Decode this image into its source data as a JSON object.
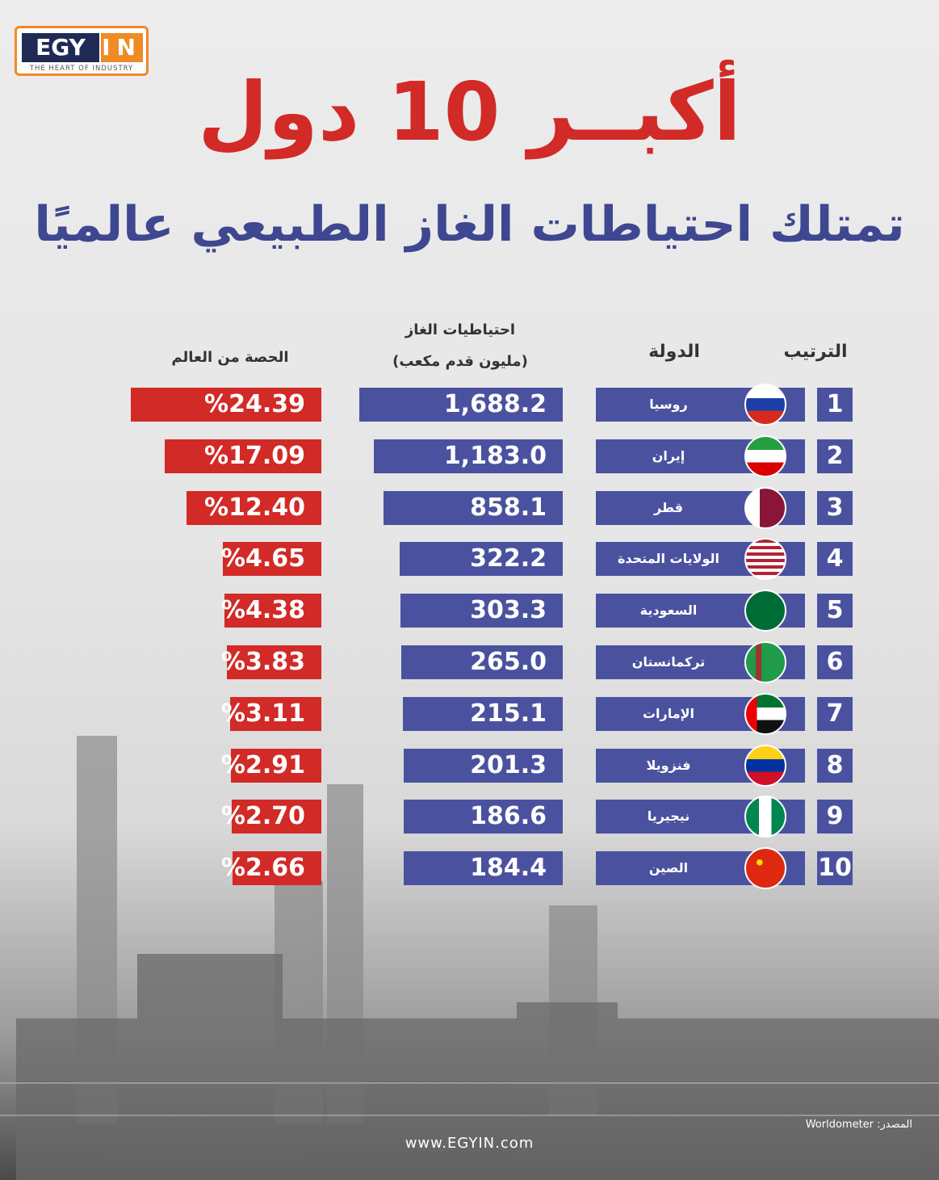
{
  "logo": {
    "main_left": "EGY",
    "main_right": "IN",
    "tagline": "THE HEART OF INDUSTRY"
  },
  "title": "أكبــر 10 دول",
  "subtitle": "تمتلك احتياطات الغاز الطبيعي عالميًا",
  "headers": {
    "rank": "الترتيب",
    "country": "الدولة",
    "gas_line1": "احتياطيات الغاز",
    "gas_line2": "(مليون قدم مكعب)",
    "share": "الحصة من العالم"
  },
  "colors": {
    "red": "#d22a27",
    "blue": "#4a52a0"
  },
  "chart_data": {
    "type": "bar",
    "categories": [
      "روسيا",
      "إيران",
      "قطر",
      "الولايات المتحدة",
      "السعودية",
      "تركمانستان",
      "الإمارات",
      "فنزويلا",
      "نيجيريا",
      "الصين"
    ],
    "ranks": [
      "1",
      "2",
      "3",
      "4",
      "5",
      "6",
      "7",
      "8",
      "9",
      "10"
    ],
    "series": [
      {
        "name": "احتياطيات الغاز (مليون قدم مكعب)",
        "values": [
          1688.2,
          1183.0,
          858.1,
          322.2,
          303.3,
          265.0,
          215.1,
          201.3,
          186.6,
          184.4
        ],
        "labels": [
          "1,688.2",
          "1,183.0",
          "858.1",
          "322.2",
          "303.3",
          "265.0",
          "215.1",
          "201.3",
          "186.6",
          "184.4"
        ]
      },
      {
        "name": "الحصة من العالم",
        "values": [
          24.39,
          17.09,
          12.4,
          4.65,
          4.38,
          3.83,
          3.11,
          2.91,
          2.7,
          2.66
        ],
        "labels": [
          "%24.39",
          "%17.09",
          "%12.40",
          "%4.65",
          "%4.38",
          "%3.83",
          "%3.11",
          "%2.91",
          "%2.70",
          "%2.66"
        ]
      }
    ],
    "flags": [
      "russia",
      "iran",
      "qatar",
      "usa",
      "saudi",
      "turkmenistan",
      "uae",
      "venezuela",
      "nigeria",
      "china"
    ]
  },
  "footer": {
    "website": "www.EGYIN.com",
    "source": "المصدر: Worldometer"
  }
}
